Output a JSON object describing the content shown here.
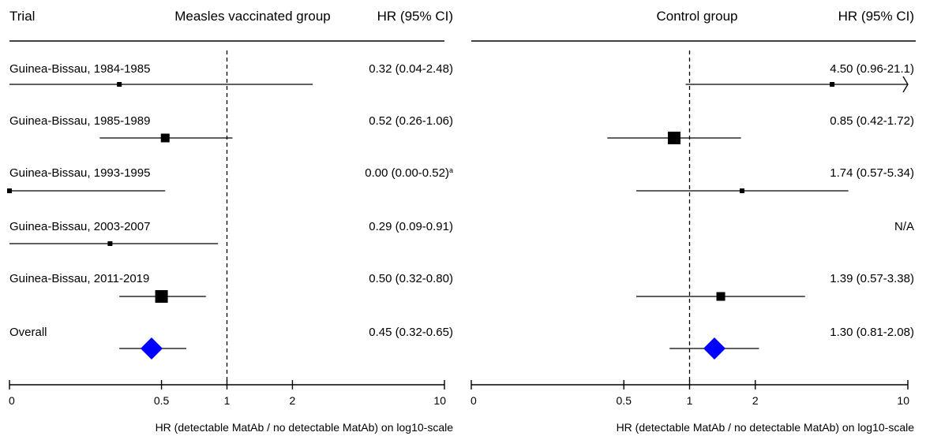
{
  "chart_data": [
    {
      "type": "forest",
      "panel": "left",
      "headers": {
        "left": "Trial",
        "center": "Measles vaccinated group",
        "right": "HR (95% CI)"
      },
      "xlabel": "HR (detectable MatAb / no detectable MatAb) on log10-scale",
      "x_scale": "log10",
      "xlim": [
        0.1,
        10
      ],
      "ticks": [
        0.1,
        0.5,
        1,
        2,
        10
      ],
      "tick_labels": [
        "0",
        "0.5",
        "1",
        "2",
        "10"
      ],
      "reference_line": 1,
      "rows": [
        {
          "label": "Guinea-Bissau, 1984-1985",
          "hr": 0.32,
          "lo": 0.1,
          "hi": 2.48,
          "text": "0.32 (0.04-2.48)",
          "weight": "small",
          "arrow_left": false
        },
        {
          "label": "Guinea-Bissau, 1985-1989",
          "hr": 0.52,
          "lo": 0.26,
          "hi": 1.06,
          "text": "0.52 (0.26-1.06)",
          "weight": "medium"
        },
        {
          "label": "Guinea-Bissau, 1993-1995",
          "hr": 0.1,
          "lo": 0.1,
          "hi": 0.52,
          "text": "0.00 (0.00-0.52)",
          "footnote": "a",
          "weight": "small"
        },
        {
          "label": "Guinea-Bissau, 2003-2007",
          "hr": 0.29,
          "lo": 0.1,
          "hi": 0.91,
          "text": "0.29 (0.09-0.91)",
          "weight": "small"
        },
        {
          "label": "Guinea-Bissau, 2011-2019",
          "hr": 0.5,
          "lo": 0.32,
          "hi": 0.8,
          "text": "0.50 (0.32-0.80)",
          "weight": "large"
        },
        {
          "label": "Overall",
          "hr": 0.45,
          "lo": 0.32,
          "hi": 0.65,
          "text": "0.45 (0.32-0.65)",
          "summary": true
        }
      ]
    },
    {
      "type": "forest",
      "panel": "right",
      "headers": {
        "center": "Control group",
        "right": "HR (95% CI)"
      },
      "xlabel": "HR (detectable MatAb / no detectable MatAb) on log10-scale",
      "x_scale": "log10",
      "xlim": [
        0.1,
        10
      ],
      "ticks": [
        0.1,
        0.5,
        1,
        2,
        10
      ],
      "tick_labels": [
        "0",
        "0.5",
        "1",
        "2",
        "10"
      ],
      "reference_line": 1,
      "rows": [
        {
          "hr": 4.5,
          "lo": 0.96,
          "hi": 10,
          "text": "4.50 (0.96-21.1)",
          "weight": "small",
          "arrow_right": true
        },
        {
          "hr": 0.85,
          "lo": 0.42,
          "hi": 1.72,
          "text": "0.85 (0.42-1.72)",
          "weight": "large"
        },
        {
          "hr": 1.74,
          "lo": 0.57,
          "hi": 5.34,
          "text": "1.74 (0.57-5.34)",
          "weight": "small"
        },
        {
          "text": "N/A"
        },
        {
          "hr": 1.39,
          "lo": 0.57,
          "hi": 3.38,
          "text": "1.39 (0.57-3.38)",
          "weight": "medium"
        },
        {
          "hr": 1.3,
          "lo": 0.81,
          "hi": 2.08,
          "text": "1.30 (0.81-2.08)",
          "summary": true
        }
      ]
    }
  ],
  "colors": {
    "summary_diamond": "#0000ff",
    "marker": "#000000",
    "line": "#000000"
  }
}
